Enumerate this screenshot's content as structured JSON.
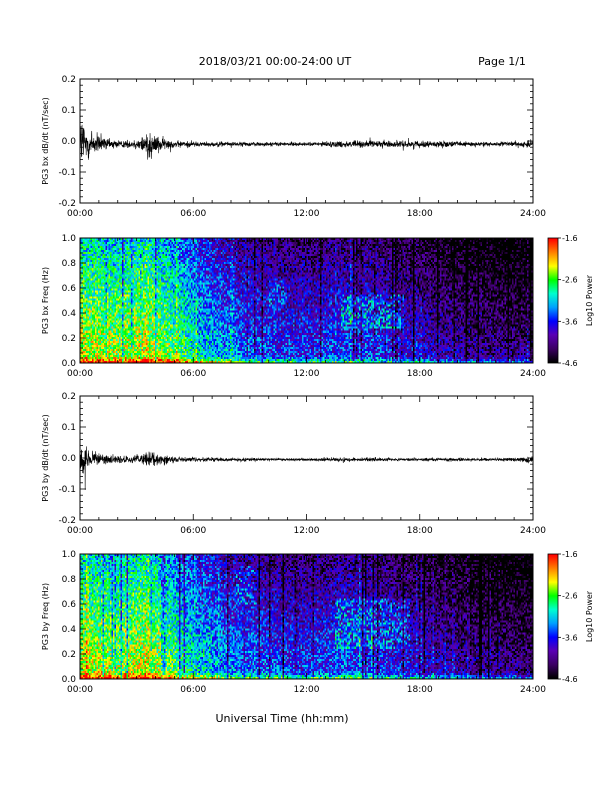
{
  "page": {
    "title": "2018/03/21  00:00-24:00 UT",
    "page_label": "Page 1/1",
    "xlabel": "Universal Time (hh:mm)"
  },
  "chart_data": [
    {
      "type": "line",
      "ylabel": "PG3 bx dB/dt (nT/sec)",
      "xlim": [
        0,
        24
      ],
      "ylim": [
        -0.2,
        0.2
      ],
      "x_ticks": [
        "00:00",
        "06:00",
        "12:00",
        "18:00",
        "24:00"
      ],
      "y_ticks": [
        "-0.2",
        "-0.1",
        "0.0",
        "0.1",
        "0.2"
      ],
      "baseline": -0.01,
      "envelope": [
        [
          0.0,
          0.2
        ],
        [
          0.3,
          0.13
        ],
        [
          0.6,
          0.09
        ],
        [
          1.0,
          0.05
        ],
        [
          1.5,
          0.03
        ],
        [
          2.0,
          0.025
        ],
        [
          2.8,
          0.02
        ],
        [
          3.3,
          0.05
        ],
        [
          3.6,
          0.1
        ],
        [
          3.9,
          0.06
        ],
        [
          4.3,
          0.04
        ],
        [
          5.0,
          0.02
        ],
        [
          6.0,
          0.015
        ],
        [
          8.0,
          0.012
        ],
        [
          10.0,
          0.012
        ],
        [
          12.0,
          0.01
        ],
        [
          13.0,
          0.015
        ],
        [
          14.0,
          0.02
        ],
        [
          16.0,
          0.02
        ],
        [
          18.0,
          0.018
        ],
        [
          20.0,
          0.015
        ],
        [
          22.0,
          0.012
        ],
        [
          23.4,
          0.015
        ],
        [
          24.0,
          0.025
        ]
      ]
    },
    {
      "type": "heatmap",
      "ylabel": "PG3 bx Freq (Hz)",
      "xlim": [
        0,
        24
      ],
      "ylim": [
        0.0,
        1.0
      ],
      "x_ticks": [
        "00:00",
        "06:00",
        "12:00",
        "18:00",
        "24:00"
      ],
      "y_ticks": [
        "0.0",
        "0.2",
        "0.4",
        "0.6",
        "0.8",
        "1.0"
      ],
      "colorbar": {
        "label": "Log10 Power",
        "range": [
          -4.6,
          -1.6
        ],
        "ticks": [
          "-1.6",
          "-2.6",
          "-3.6",
          "-4.6"
        ]
      },
      "colormap": [
        "#000000",
        "#3c0064",
        "#5a00b4",
        "#0000ff",
        "#00a0ff",
        "#00ffd0",
        "#00ff00",
        "#ffff00",
        "#ff8000",
        "#ff0000"
      ],
      "activity": [
        [
          0.0,
          0.78
        ],
        [
          2.0,
          0.74
        ],
        [
          3.5,
          0.8
        ],
        [
          5.0,
          0.68
        ],
        [
          6.0,
          0.58
        ],
        [
          8.0,
          0.45
        ],
        [
          10.0,
          0.38
        ],
        [
          12.0,
          0.35
        ],
        [
          14.0,
          0.38
        ],
        [
          16.0,
          0.36
        ],
        [
          18.0,
          0.28
        ],
        [
          21.0,
          0.2
        ],
        [
          24.0,
          0.15
        ]
      ],
      "features": [
        {
          "t": [
            13.8,
            17.2
          ],
          "f": [
            0.28,
            0.55
          ],
          "boost": 0.2
        },
        {
          "t": [
            10.0,
            11.0
          ],
          "f": [
            0.45,
            0.7
          ],
          "boost": 0.12
        }
      ]
    },
    {
      "type": "line",
      "ylabel": "PG3 by dB/dt (nT/sec)",
      "xlim": [
        0,
        24
      ],
      "ylim": [
        -0.2,
        0.2
      ],
      "x_ticks": [
        "00:00",
        "06:00",
        "12:00",
        "18:00",
        "24:00"
      ],
      "y_ticks": [
        "-0.2",
        "-0.1",
        "0.0",
        "0.1",
        "0.2"
      ],
      "baseline": -0.005,
      "envelope": [
        [
          0.0,
          0.12
        ],
        [
          0.3,
          0.07
        ],
        [
          0.8,
          0.04
        ],
        [
          1.5,
          0.025
        ],
        [
          2.5,
          0.02
        ],
        [
          3.3,
          0.035
        ],
        [
          3.6,
          0.05
        ],
        [
          4.0,
          0.035
        ],
        [
          4.6,
          0.025
        ],
        [
          5.5,
          0.015
        ],
        [
          7.0,
          0.01
        ],
        [
          10.0,
          0.008
        ],
        [
          12.0,
          0.008
        ],
        [
          14.0,
          0.012
        ],
        [
          16.0,
          0.01
        ],
        [
          20.0,
          0.008
        ],
        [
          23.0,
          0.01
        ],
        [
          24.0,
          0.018
        ]
      ]
    },
    {
      "type": "heatmap",
      "ylabel": "PG3 by Freq (Hz)",
      "xlim": [
        0,
        24
      ],
      "ylim": [
        0.0,
        1.0
      ],
      "x_ticks": [
        "00:00",
        "06:00",
        "12:00",
        "18:00",
        "24:00"
      ],
      "y_ticks": [
        "0.0",
        "0.2",
        "0.4",
        "0.6",
        "0.8",
        "1.0"
      ],
      "colorbar": {
        "label": "Log10 Power",
        "range": [
          -4.6,
          -1.6
        ],
        "ticks": [
          "-1.6",
          "-2.6",
          "-3.6",
          "-4.6"
        ]
      },
      "colormap": [
        "#000000",
        "#3c0064",
        "#5a00b4",
        "#0000ff",
        "#00a0ff",
        "#00ffd0",
        "#00ff00",
        "#ffff00",
        "#ff8000",
        "#ff0000"
      ],
      "activity": [
        [
          0.0,
          0.78
        ],
        [
          2.0,
          0.74
        ],
        [
          3.5,
          0.8
        ],
        [
          5.0,
          0.66
        ],
        [
          6.0,
          0.56
        ],
        [
          8.0,
          0.45
        ],
        [
          10.0,
          0.4
        ],
        [
          12.0,
          0.36
        ],
        [
          14.0,
          0.4
        ],
        [
          16.0,
          0.35
        ],
        [
          18.0,
          0.28
        ],
        [
          21.0,
          0.2
        ],
        [
          24.0,
          0.15
        ]
      ],
      "features": [
        {
          "t": [
            13.5,
            17.5
          ],
          "f": [
            0.25,
            0.65
          ],
          "boost": 0.18
        },
        {
          "t": [
            8.3,
            9.3
          ],
          "f": [
            0.6,
            0.9
          ],
          "boost": 0.15
        }
      ]
    }
  ]
}
